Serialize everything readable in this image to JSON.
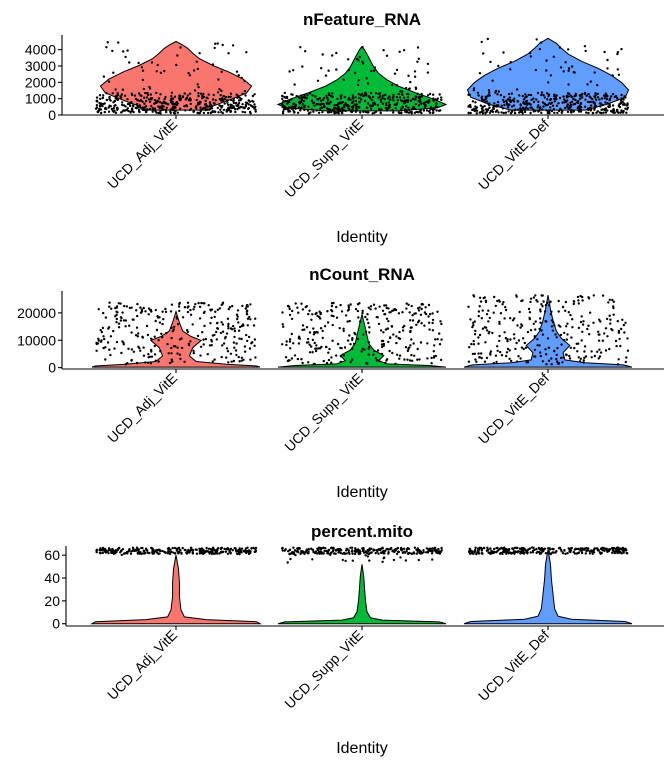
{
  "chart_data": [
    {
      "type": "violin",
      "title": "nFeature_RNA",
      "xlabel": "Identity",
      "ylabel": "",
      "categories": [
        "UCD_Adj_VitE",
        "UCD_Supp_VitE",
        "UCD_VitE_Def"
      ],
      "colors": [
        "#F8766D",
        "#00BA38",
        "#619CFF"
      ],
      "yticks": [
        0,
        1000,
        2000,
        3000,
        4000
      ],
      "ylim": [
        0,
        4900
      ],
      "series": [
        {
          "name": "UCD_Adj_VitE",
          "min": 300,
          "max": 4500,
          "median": 1500
        },
        {
          "name": "UCD_Supp_VitE",
          "min": 250,
          "max": 4200,
          "median": 1000
        },
        {
          "name": "UCD_VitE_Def",
          "min": 300,
          "max": 4700,
          "median": 1500
        }
      ]
    },
    {
      "type": "violin",
      "title": "nCount_RNA",
      "xlabel": "Identity",
      "ylabel": "",
      "categories": [
        "UCD_Adj_VitE",
        "UCD_Supp_VitE",
        "UCD_VitE_Def"
      ],
      "colors": [
        "#F8766D",
        "#00BA38",
        "#619CFF"
      ],
      "yticks": [
        0,
        10000,
        20000
      ],
      "ylim": [
        -500,
        28000
      ],
      "series": [
        {
          "name": "UCD_Adj_VitE",
          "min": 200,
          "max": 20500,
          "median": 2000
        },
        {
          "name": "UCD_Supp_VitE",
          "min": 200,
          "max": 19500,
          "median": 1500
        },
        {
          "name": "UCD_VitE_Def",
          "min": 200,
          "max": 26500,
          "median": 2000
        }
      ]
    },
    {
      "type": "violin",
      "title": "percent.mito",
      "xlabel": "Identity",
      "ylabel": "",
      "categories": [
        "UCD_Adj_VitE",
        "UCD_Supp_VitE",
        "UCD_VitE_Def"
      ],
      "colors": [
        "#F8766D",
        "#00BA38",
        "#619CFF"
      ],
      "yticks": [
        0,
        20,
        40,
        60
      ],
      "ylim": [
        -2,
        68
      ],
      "series": [
        {
          "name": "UCD_Adj_VitE",
          "min": 0,
          "max": 60,
          "median": 3
        },
        {
          "name": "UCD_Supp_VitE",
          "min": 0,
          "max": 52,
          "median": 2
        },
        {
          "name": "UCD_VitE_Def",
          "min": 0,
          "max": 65,
          "median": 2
        }
      ]
    }
  ]
}
